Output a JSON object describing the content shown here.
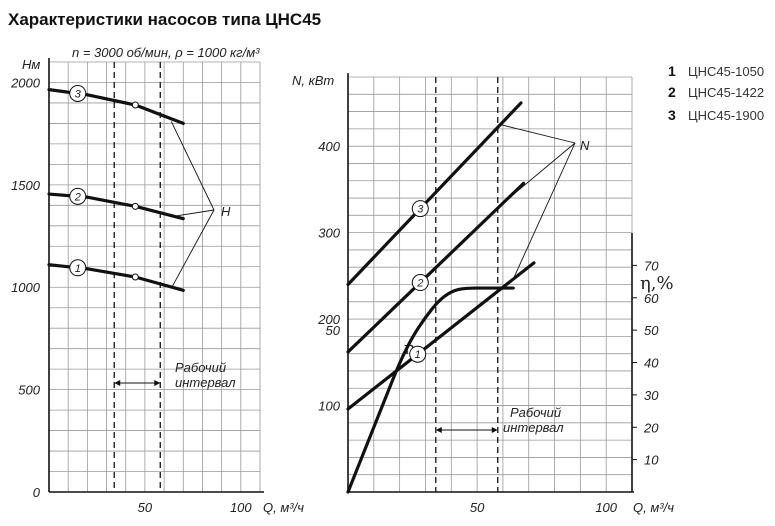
{
  "chart_title": "Характеристики насосов типа ЦНС45",
  "chart_data": [
    {
      "type": "line",
      "subtitle": "n = 3000 об/мин, ρ = 1000 кг/м³",
      "ylabel": "Нм",
      "xlabel": "Q, м³/ч",
      "xlim": [
        0,
        110
      ],
      "ylim": [
        0,
        2100
      ],
      "xticks": [
        "50",
        "100"
      ],
      "yticks": [
        "0",
        "500",
        "1000",
        "1500",
        "2000"
      ],
      "grid": true,
      "curve_label": "H",
      "work_range": {
        "label_line1": "Рабочий",
        "label_line2": "интервал",
        "x": [
          34,
          58
        ]
      },
      "series": [
        {
          "marker": "3",
          "x": [
            0,
            20,
            45,
            70
          ],
          "values": [
            1965,
            1940,
            1890,
            1800
          ]
        },
        {
          "marker": "2",
          "x": [
            0,
            20,
            45,
            70
          ],
          "values": [
            1455,
            1440,
            1395,
            1335
          ]
        },
        {
          "marker": "1",
          "x": [
            0,
            20,
            45,
            70
          ],
          "values": [
            1110,
            1090,
            1050,
            985
          ]
        }
      ],
      "rated_points": [
        [
          45,
          1890
        ],
        [
          45,
          1395
        ],
        [
          45,
          1050
        ]
      ]
    },
    {
      "type": "line",
      "ylabel": "N, кВт",
      "xlabel": "Q, м³/ч",
      "xlim": [
        0,
        110
      ],
      "ylim": [
        0,
        480
      ],
      "xticks": [
        "50",
        "100"
      ],
      "yticks": [
        "100",
        "200",
        "300",
        "400"
      ],
      "grid": true,
      "curve_label": "N",
      "work_range": {
        "label_line1": "Рабочий",
        "label_line2": "интервал",
        "x": [
          34,
          58
        ]
      },
      "series": [
        {
          "marker": "3",
          "x": [
            0,
            67
          ],
          "values": [
            240,
            450
          ]
        },
        {
          "marker": "2",
          "x": [
            0,
            68
          ],
          "values": [
            162,
            357
          ]
        },
        {
          "marker": "1",
          "x": [
            0,
            72
          ],
          "values": [
            96,
            265
          ]
        }
      ]
    },
    {
      "type": "line",
      "ylabel": "η,%",
      "xlabel": "Q, м³/ч",
      "xlim": [
        0,
        110
      ],
      "ylim": [
        0,
        80
      ],
      "yticks": [
        "10",
        "20",
        "30",
        "40",
        "50",
        "60",
        "70"
      ],
      "left_tick": "50",
      "curve_label": "η",
      "series": [
        {
          "name": "η",
          "x": [
            0,
            5,
            10,
            15,
            20,
            25,
            30,
            35,
            40,
            45,
            55,
            64
          ],
          "values": [
            0,
            10,
            20,
            30,
            40,
            48,
            54,
            59,
            62,
            63,
            63,
            63
          ]
        }
      ]
    }
  ],
  "legend": [
    {
      "number": "1",
      "label": "ЦНС45-1050"
    },
    {
      "number": "2",
      "label": "ЦНС45-1422"
    },
    {
      "number": "3",
      "label": "ЦНС45-1900"
    }
  ]
}
